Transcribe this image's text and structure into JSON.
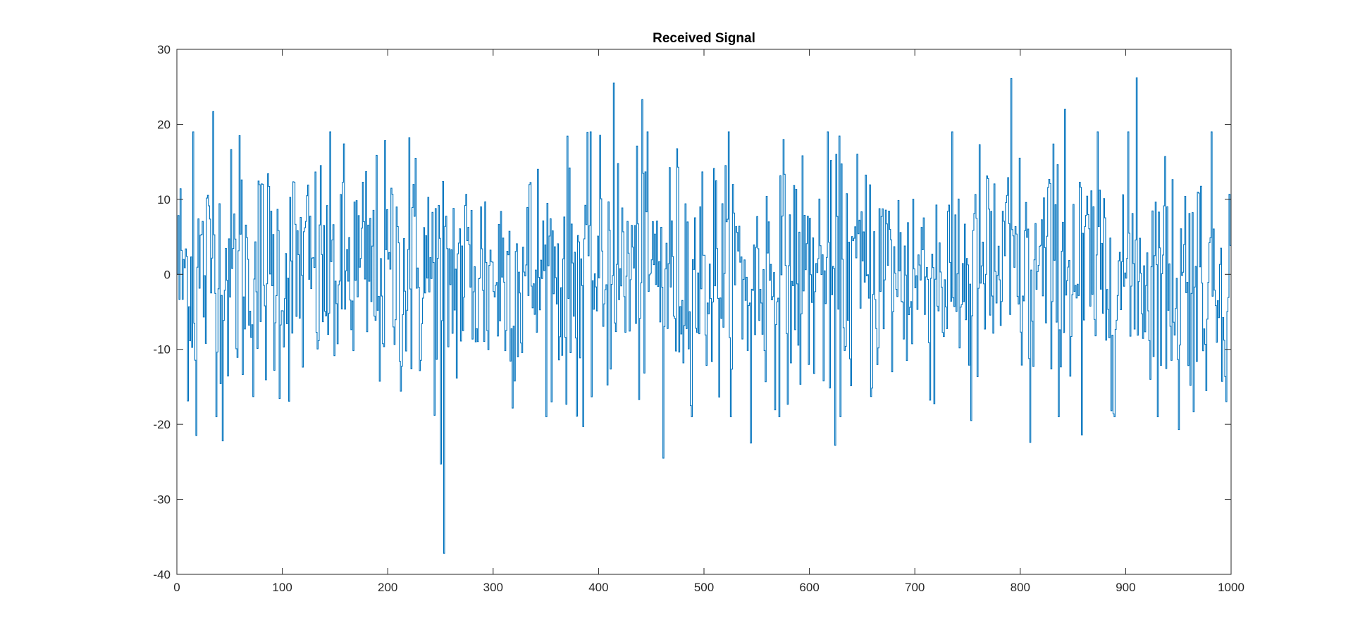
{
  "chart_data": {
    "type": "line",
    "title": "Received Signal",
    "xlabel": "",
    "ylabel": "",
    "xlim": [
      0,
      1000
    ],
    "ylim": [
      -40,
      30
    ],
    "xticks": [
      0,
      100,
      200,
      300,
      400,
      500,
      600,
      700,
      800,
      900,
      1000
    ],
    "yticks": [
      -40,
      -30,
      -20,
      -10,
      0,
      10,
      20,
      30
    ],
    "xtick_labels": [
      "0",
      "100",
      "200",
      "300",
      "400",
      "500",
      "600",
      "700",
      "800",
      "900",
      "1000"
    ],
    "ytick_labels": [
      "-40",
      "-30",
      "-20",
      "-10",
      "0",
      "10",
      "20",
      "30"
    ],
    "grid": false,
    "box": true,
    "line_color": "#0072BD",
    "axis_color": "#262626",
    "series": [
      {
        "style": "stairs",
        "sample_step": 1,
        "n_samples": 1000,
        "x_start": 0,
        "estimated_extremes": {
          "min": {
            "x": 253,
            "y": -37.2
          },
          "max": {
            "x": 910,
            "y": 26.2
          }
        },
        "notable_values": [
          {
            "x": 15,
            "y": 19.0
          },
          {
            "x": 18,
            "y": -21.5
          },
          {
            "x": 34,
            "y": 21.7
          },
          {
            "x": 43,
            "y": -22.2
          },
          {
            "x": 59,
            "y": 18.5
          },
          {
            "x": 220,
            "y": 18.2
          },
          {
            "x": 250,
            "y": -25.3
          },
          {
            "x": 253,
            "y": -37.2
          },
          {
            "x": 385,
            "y": -20.3
          },
          {
            "x": 414,
            "y": 25.5
          },
          {
            "x": 441,
            "y": 23.3
          },
          {
            "x": 461,
            "y": -24.5
          },
          {
            "x": 544,
            "y": -22.5
          },
          {
            "x": 624,
            "y": -22.8
          },
          {
            "x": 753,
            "y": -19.5
          },
          {
            "x": 791,
            "y": 26.1
          },
          {
            "x": 809,
            "y": -22.4
          },
          {
            "x": 842,
            "y": 22.0
          },
          {
            "x": 858,
            "y": -21.4
          },
          {
            "x": 910,
            "y": 26.2
          },
          {
            "x": 950,
            "y": -20.7
          }
        ],
        "typical_std": 8.2,
        "y": []
      }
    ]
  }
}
